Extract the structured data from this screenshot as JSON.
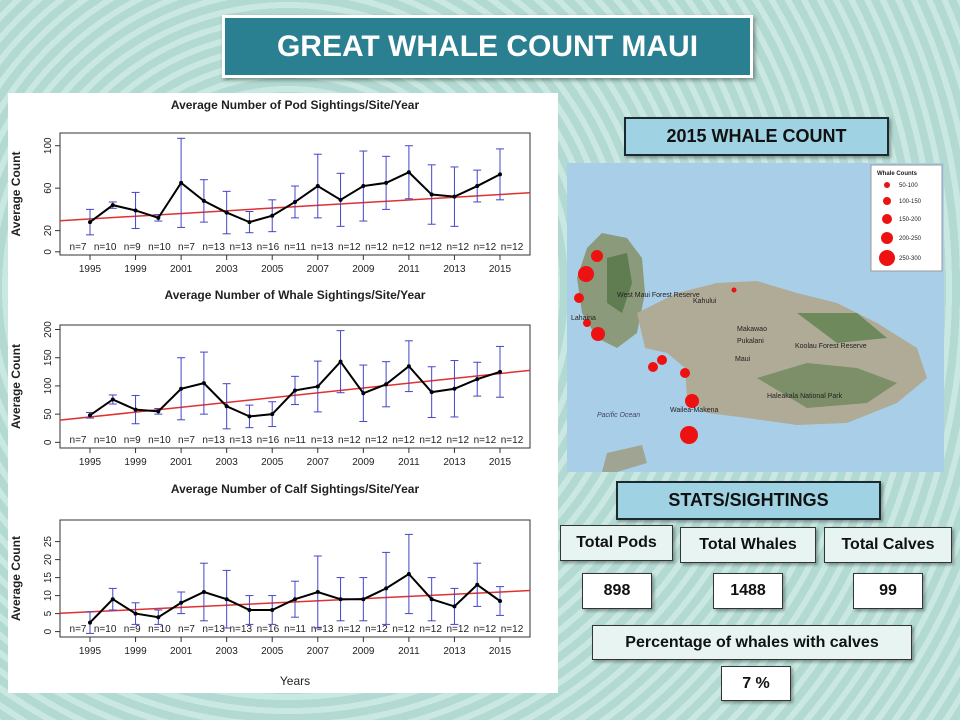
{
  "title": "GREAT WHALE COUNT MAUI",
  "chart_data": [
    {
      "type": "line",
      "title": "Average Number of Pod Sightings/Site/Year",
      "ylabel": "Average Count",
      "categories": [
        "1995",
        null,
        "1999",
        null,
        "2001",
        null,
        "2003",
        null,
        "2005",
        null,
        "2007",
        null,
        "2009",
        null,
        "2011",
        null,
        "2013",
        null,
        "2015"
      ],
      "values": [
        28,
        44,
        39,
        32,
        65,
        48,
        37,
        28,
        34,
        47,
        62,
        49,
        62,
        65,
        75,
        54,
        52,
        62,
        73
      ],
      "errors": [
        12,
        3,
        17,
        3,
        42,
        20,
        20,
        10,
        15,
        15,
        30,
        25,
        33,
        25,
        25,
        28,
        28,
        15,
        24
      ],
      "color": "#000000",
      "error_color": "#4444cc",
      "trend": [
        31,
        54
      ],
      "trend_color": "#e03030",
      "ylim": [
        -3,
        112
      ],
      "yticks": [
        0,
        20,
        60,
        100
      ],
      "annotations": [
        "n=7",
        "n=10",
        "n=9",
        "n=10",
        "n=7",
        "n=13",
        "n=13",
        "n=16",
        "n=11",
        "n=13",
        "n=12",
        "n=12",
        "n=12",
        "n=12",
        "n=12",
        "n=12",
        "n=12"
      ]
    },
    {
      "type": "line",
      "title": "Average Number of Whale Sightings/Site/Year",
      "ylabel": "Average Count",
      "categories": [
        "1995",
        null,
        "1999",
        null,
        "2001",
        null,
        "2003",
        null,
        "2005",
        null,
        "2007",
        null,
        "2009",
        null,
        "2011",
        null,
        "2013",
        null,
        "2015"
      ],
      "values": [
        48,
        76,
        58,
        55,
        95,
        105,
        64,
        46,
        50,
        92,
        99,
        143,
        87,
        103,
        135,
        89,
        95,
        112,
        125
      ],
      "errors": [
        5,
        8,
        25,
        5,
        55,
        55,
        40,
        20,
        22,
        25,
        45,
        55,
        50,
        40,
        45,
        45,
        50,
        30,
        45
      ],
      "color": "#000000",
      "error_color": "#4444cc",
      "trend": [
        45,
        122
      ],
      "trend_color": "#e03030",
      "ylim": [
        -10,
        208
      ],
      "yticks": [
        0,
        50,
        100,
        150,
        200
      ],
      "annotations": [
        "n=7",
        "n=10",
        "n=9",
        "n=10",
        "n=7",
        "n=13",
        "n=13",
        "n=16",
        "n=11",
        "n=13",
        "n=12",
        "n=12",
        "n=12",
        "n=12",
        "n=12",
        "n=12",
        "n=12"
      ]
    },
    {
      "type": "line",
      "title": "Average Number of Calf Sightings/Site/Year",
      "ylabel": "Average Count",
      "xlabel": "Years",
      "categories": [
        "1995",
        null,
        "1999",
        null,
        "2001",
        null,
        "2003",
        null,
        "2005",
        null,
        "2007",
        null,
        "2009",
        null,
        "2011",
        null,
        "2013",
        null,
        "2015"
      ],
      "values": [
        2.5,
        9,
        5,
        4,
        8,
        11,
        9,
        6,
        6,
        9,
        11,
        9,
        9,
        12,
        16,
        9,
        7,
        13,
        8.5
      ],
      "errors": [
        3,
        3,
        3,
        2,
        3,
        8,
        8,
        4,
        4,
        5,
        10,
        6,
        6,
        10,
        11,
        6,
        5,
        6,
        4
      ],
      "color": "#000000",
      "error_color": "#4444cc",
      "trend": [
        5.5,
        11
      ],
      "trend_color": "#e03030",
      "ylim": [
        -1.5,
        31
      ],
      "yticks": [
        0,
        5,
        10,
        15,
        20,
        25
      ],
      "annotations": [
        "n=7",
        "n=10",
        "n=9",
        "n=10",
        "n=7",
        "n=13",
        "n=13",
        "n=16",
        "n=11",
        "n=13",
        "n=12",
        "n=12",
        "n=12",
        "n=12",
        "n=12",
        "n=12",
        "n=12"
      ]
    }
  ],
  "map": {
    "title": "2015 WHALE COUNT",
    "legend_title": "Whale Counts",
    "legend": [
      "50-100",
      "100-150",
      "150-200",
      "200-250",
      "250-300"
    ],
    "places": [
      "West Maui Forest Reserve",
      "Lahaina",
      "Kahului",
      "Makawao",
      "Pukalani",
      "Maui",
      "Koolau Forest Reserve",
      "Haleakala National Park",
      "Wailea-Makena",
      "Pacific Ocean"
    ]
  },
  "stats": {
    "title": "STATS/SIGHTINGS",
    "items": [
      {
        "label": "Total Pods",
        "value": "898"
      },
      {
        "label": "Total Whales",
        "value": "1488"
      },
      {
        "label": "Total Calves",
        "value": "99"
      }
    ],
    "percent_label": "Percentage of whales with calves",
    "percent_value": "7 %"
  }
}
